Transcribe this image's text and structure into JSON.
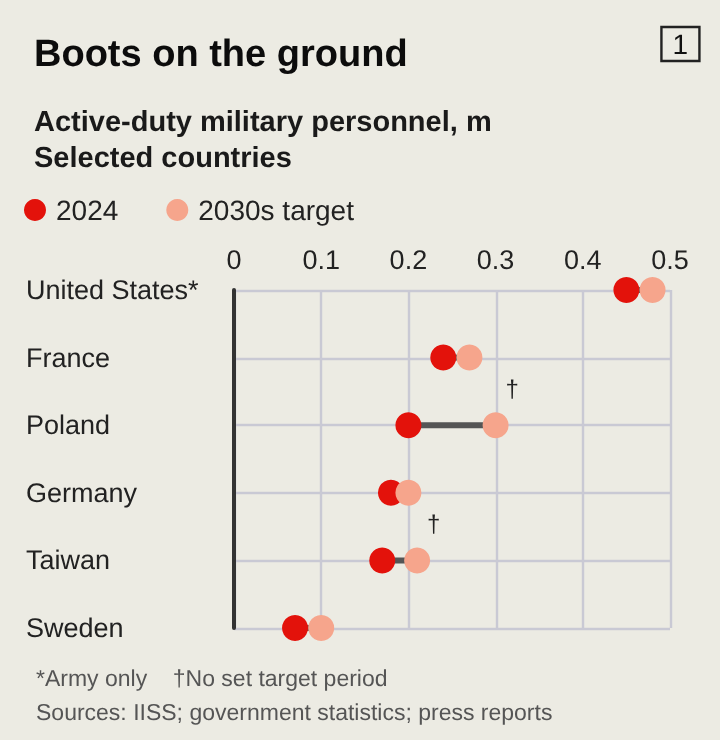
{
  "chart_data": {
    "type": "scatter",
    "orientation": "horizontal",
    "title": "Boots on the ground",
    "subtitle": "Active-duty military personnel, m\nSelected countries",
    "categories": [
      "United States*",
      "France",
      "Poland",
      "Germany",
      "Taiwan",
      "Sweden"
    ],
    "series": [
      {
        "name": "2024",
        "color": "#e3120b",
        "values": [
          0.45,
          0.24,
          0.2,
          0.18,
          0.17,
          0.07
        ]
      },
      {
        "name": "2030s target",
        "color": "#f6a58c",
        "values": [
          0.48,
          0.27,
          0.3,
          0.2,
          0.21,
          0.1
        ]
      }
    ],
    "xlim": [
      0,
      0.5
    ],
    "xticks": [
      0,
      0.1,
      0.2,
      0.3,
      0.4,
      0.5
    ],
    "grid": true,
    "legend": "top left",
    "marker": "circle",
    "annotations": [
      "1",
      "*Army only    †No set target period",
      "Sources: IISS; government statistics; press reports",
      {
        "text": "†",
        "x": 0.3,
        "y": "Poland"
      },
      {
        "text": "†",
        "x": 0.21,
        "y": "Taiwan"
      }
    ]
  }
}
